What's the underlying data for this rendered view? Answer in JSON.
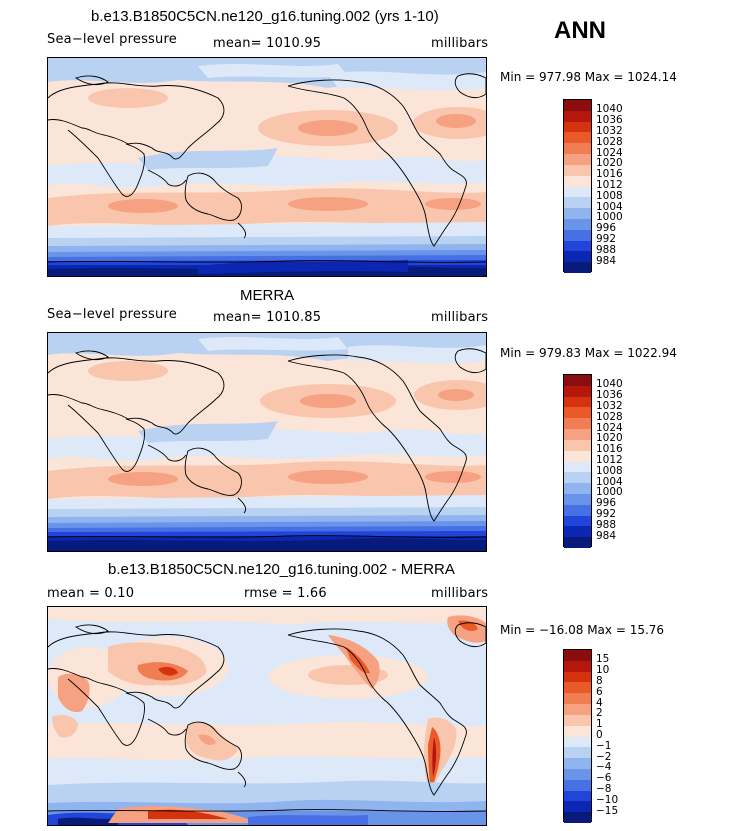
{
  "season": "ANN",
  "panels": [
    {
      "title": "b.e13.B1850C5CN.ne120_g16.tuning.002 (yrs 1-10)",
      "left_label": "Sea−level pressure",
      "mid_label": "mean=  1010.95",
      "units": "millibars",
      "minmax": "Min = 977.98  Max = 1024.14",
      "levels": [
        "1040",
        "1036",
        "1032",
        "1028",
        "1024",
        "1020",
        "1016",
        "1012",
        "1008",
        "1004",
        "1000",
        "996",
        "992",
        "988",
        "984"
      ],
      "colors": [
        "#8b0d0d",
        "#b5170d",
        "#d5320f",
        "#ea5a29",
        "#f07e52",
        "#f6a182",
        "#f9c6ad",
        "#fae5d8",
        "#dde9f8",
        "#bad2f2",
        "#90b4ee",
        "#6a93ea",
        "#4670e4",
        "#2045d8",
        "#0b26b0",
        "#081a7a"
      ]
    },
    {
      "title": "MERRA",
      "left_label": "Sea−level pressure",
      "mid_label": "mean=  1010.85",
      "units": "millibars",
      "minmax": "Min = 979.83  Max = 1022.94",
      "levels": [
        "1040",
        "1036",
        "1032",
        "1028",
        "1024",
        "1020",
        "1016",
        "1012",
        "1008",
        "1004",
        "1000",
        "996",
        "992",
        "988",
        "984"
      ],
      "colors": [
        "#8b0d0d",
        "#b5170d",
        "#d5320f",
        "#ea5a29",
        "#f07e52",
        "#f6a182",
        "#f9c6ad",
        "#fae5d8",
        "#dde9f8",
        "#bad2f2",
        "#90b4ee",
        "#6a93ea",
        "#4670e4",
        "#2045d8",
        "#0b26b0",
        "#081a7a"
      ]
    },
    {
      "title": "b.e13.B1850C5CN.ne120_g16.tuning.002 - MERRA",
      "left_label": "mean =    0.10",
      "mid_label": "rmse =    1.66",
      "units": "millibars",
      "minmax": "Min = −16.08  Max =   15.76",
      "levels": [
        "15",
        "10",
        "8",
        "6",
        "4",
        "2",
        "1",
        "0",
        "−1",
        "−2",
        "−4",
        "−6",
        "−8",
        "−10",
        "−15"
      ],
      "colors": [
        "#8b0d0d",
        "#b5170d",
        "#d5320f",
        "#ea5a29",
        "#f07e52",
        "#f6a182",
        "#f9c6ad",
        "#fae5d8",
        "#dde9f8",
        "#bad2f2",
        "#90b4ee",
        "#6a93ea",
        "#4670e4",
        "#2045d8",
        "#0b26b0",
        "#081a7a"
      ]
    }
  ]
}
